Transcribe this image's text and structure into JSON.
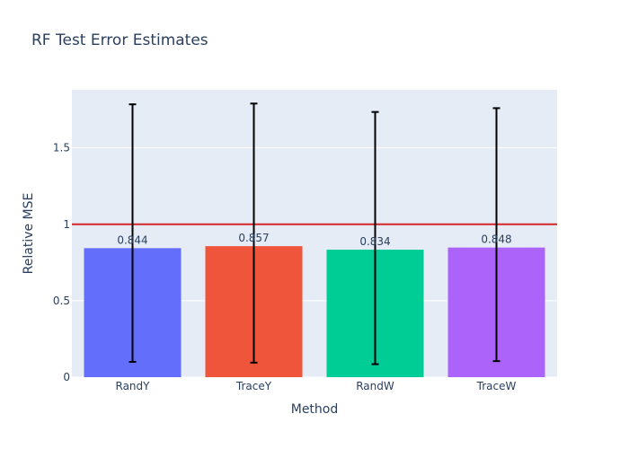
{
  "chart_data": {
    "type": "bar",
    "title": "RF Test Error Estimates",
    "xlabel": "Method",
    "ylabel": "Relative MSE",
    "categories": [
      "RandY",
      "TraceY",
      "RandW",
      "TraceW"
    ],
    "values": [
      0.844,
      0.857,
      0.834,
      0.848
    ],
    "value_labels": [
      "0.844",
      "0.857",
      "0.834",
      "0.848"
    ],
    "error_low": [
      0.1,
      0.095,
      0.085,
      0.105
    ],
    "error_high": [
      1.785,
      1.79,
      1.735,
      1.76
    ],
    "colors": [
      "#636efa",
      "#ef553b",
      "#00cc96",
      "#ab63fa"
    ],
    "reference_line": {
      "y": 1,
      "color": "#d62728"
    },
    "ylim": [
      0,
      1.88
    ],
    "yticks": [
      0,
      0.5,
      1,
      1.5
    ],
    "ytick_labels": [
      "0",
      "0.5",
      "1",
      "1.5"
    ],
    "grid": true,
    "background": "#e5ecf6"
  }
}
